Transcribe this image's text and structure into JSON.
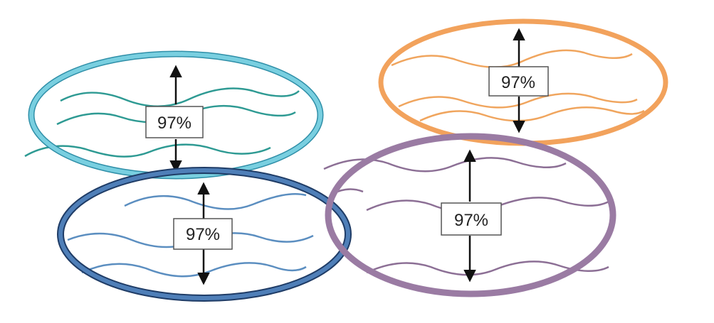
{
  "clusters": [
    {
      "name": "teal",
      "label": "97%",
      "ring_color": "#79cfe0",
      "ring_outline": "#2f8fa8",
      "strand_color": "#2e9a93"
    },
    {
      "name": "blue",
      "label": "97%",
      "ring_color": "#4f7fb8",
      "ring_outline": "#1f3c66",
      "strand_color": "#5b8ec0"
    },
    {
      "name": "orange",
      "label": "97%",
      "ring_color": "#f2a25c",
      "ring_outline": "#d9813a",
      "strand_color": "#f0a55e"
    },
    {
      "name": "purple",
      "label": "97%",
      "ring_color": "#9a7ba3",
      "ring_outline": "#7a5c84",
      "strand_color": "#8c6f95"
    }
  ],
  "arrow_color": "#111111",
  "box_border": "#555555"
}
